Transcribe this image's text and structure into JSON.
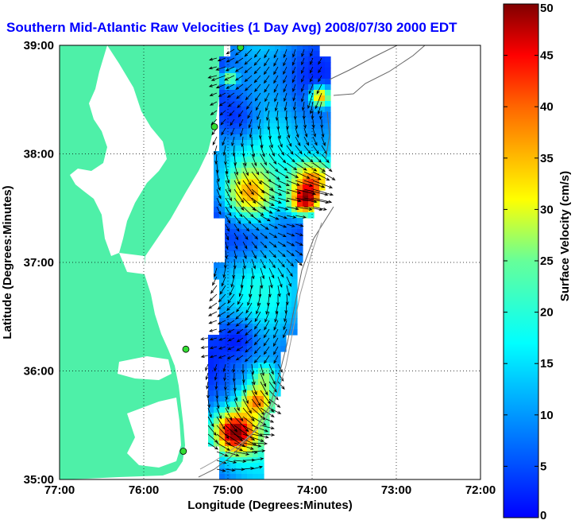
{
  "title": "Southern Mid-Atlantic Raw Velocities (1 Day Avg) 2008/07/30 2000 EDT",
  "map": {
    "x_label": "Longitude (Degrees:Minutes)",
    "y_label": "Latitude (Degrees:Minutes)",
    "x_ticks": [
      "77:00",
      "76:00",
      "75:00",
      "74:00",
      "73:00",
      "72:00"
    ],
    "y_ticks": [
      "39:00",
      "38:00",
      "37:00",
      "36:00",
      "35:00"
    ],
    "lon_range": [
      -77,
      -72
    ],
    "lat_range": [
      35,
      39
    ],
    "grid": true,
    "land_color": "#4ef0a8",
    "arrow_color": "#000000",
    "site_marker_color": "#33dd33"
  },
  "colorbar": {
    "label": "Surface Velocity (cm/s)",
    "ticks": [
      "0",
      "5",
      "10",
      "15",
      "20",
      "25",
      "30",
      "35",
      "40",
      "45",
      "50"
    ],
    "min": 0,
    "max": 50,
    "colormap": "jet"
  },
  "sites": [
    {
      "lon": -74.85,
      "lat": 38.98
    },
    {
      "lon": -75.16,
      "lat": 38.25
    },
    {
      "lon": -75.5,
      "lat": 36.2
    },
    {
      "lon": -75.53,
      "lat": 35.26
    }
  ]
}
